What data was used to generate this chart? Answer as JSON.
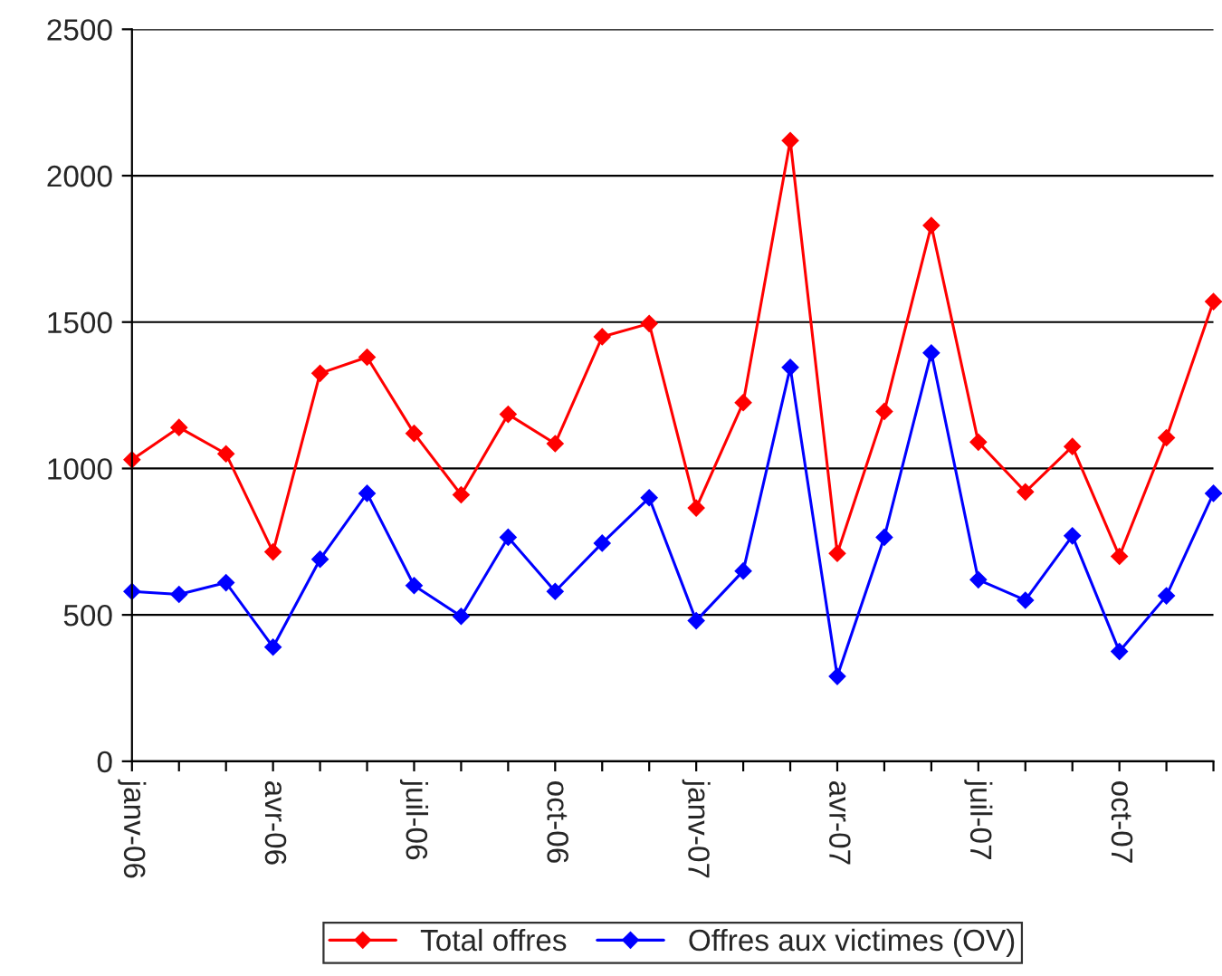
{
  "chart_data": {
    "type": "line",
    "categories": [
      "janv-06",
      null,
      null,
      "avr-06",
      null,
      null,
      "juil-06",
      null,
      null,
      "oct-06",
      null,
      null,
      "janv-07",
      null,
      null,
      "avr-07",
      null,
      null,
      "juil-07",
      null,
      null,
      "oct-07",
      null,
      null
    ],
    "series": [
      {
        "name": "Total offres",
        "color": "#ff0000",
        "values": [
          1030,
          1140,
          1050,
          715,
          1325,
          1380,
          1120,
          910,
          1185,
          1085,
          1450,
          1495,
          865,
          1225,
          2120,
          710,
          1195,
          1830,
          1090,
          920,
          1075,
          700,
          1105,
          1570
        ]
      },
      {
        "name": "Offres aux victimes (OV)",
        "color": "#0000ff",
        "values": [
          580,
          570,
          610,
          390,
          690,
          915,
          600,
          495,
          765,
          580,
          745,
          900,
          480,
          650,
          1345,
          290,
          765,
          1395,
          620,
          550,
          770,
          375,
          565,
          915
        ]
      }
    ],
    "ylim": [
      0,
      2500
    ],
    "yticks": [
      0,
      500,
      1000,
      1500,
      2000,
      2500
    ],
    "grid": "y",
    "legend": "bottom",
    "marker": "diamond",
    "line_style": "solid"
  }
}
